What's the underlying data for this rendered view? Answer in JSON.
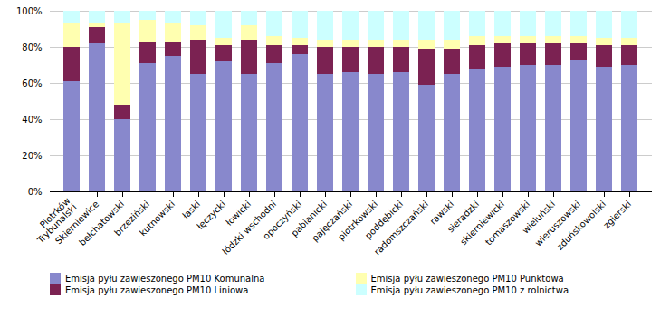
{
  "chart_data": {
    "type": "bar",
    "stacked": true,
    "categories": [
      "Piotrków\nTrybunalski",
      "Skierniewice",
      "bełchatowski",
      "brzeziński",
      "kutnowski",
      "łaski",
      "łęczycki",
      "łowicki",
      "łódzki wschodni",
      "opoczyński",
      "pabianicki",
      "pajęczański",
      "piotrkowski",
      "poddębicki",
      "radomszczański",
      "rawski",
      "sieradzki",
      "skierniewicki",
      "tomaszowski",
      "wieluński",
      "wieruszowski",
      "zduńskowolski",
      "zgierski"
    ],
    "series": [
      {
        "name": "Emisja pyłu zawieszonego PM10  Komunalna",
        "color": "#8888CC",
        "values": [
          61,
          82,
          40,
          71,
          75,
          65,
          72,
          65,
          71,
          76,
          65,
          66,
          65,
          66,
          59,
          65,
          68,
          69,
          70,
          70,
          73,
          69,
          70
        ]
      },
      {
        "name": "Emisja pyłu zawieszonego PM10  Liniowa",
        "color": "#7B2252",
        "values": [
          19,
          9,
          8,
          12,
          8,
          19,
          9,
          19,
          10,
          5,
          15,
          14,
          15,
          14,
          20,
          14,
          13,
          13,
          12,
          12,
          9,
          12,
          11
        ]
      },
      {
        "name": "Emisja pyłu zawieszonego PM10  Punktowa",
        "color": "#FFFFB0",
        "values": [
          13,
          2,
          45,
          12,
          10,
          8,
          4,
          8,
          5,
          4,
          4,
          4,
          4,
          4,
          5,
          5,
          5,
          4,
          4,
          4,
          4,
          4,
          4
        ]
      },
      {
        "name": "Emisja pyłu zawieszonego PM10  z rolnictwa",
        "color": "#CCFFFF",
        "values": [
          7,
          7,
          7,
          5,
          7,
          8,
          15,
          8,
          14,
          15,
          16,
          16,
          16,
          16,
          16,
          16,
          14,
          14,
          14,
          14,
          14,
          15,
          15
        ]
      }
    ],
    "ylim": [
      0,
      100
    ],
    "yticks": [
      {
        "value": 0,
        "label": "0%"
      },
      {
        "value": 20,
        "label": "20%"
      },
      {
        "value": 40,
        "label": "40%"
      },
      {
        "value": 60,
        "label": "60%"
      },
      {
        "value": 80,
        "label": "80%"
      },
      {
        "value": 100,
        "label": "100%"
      }
    ],
    "grid": true,
    "legend": "bottom"
  }
}
